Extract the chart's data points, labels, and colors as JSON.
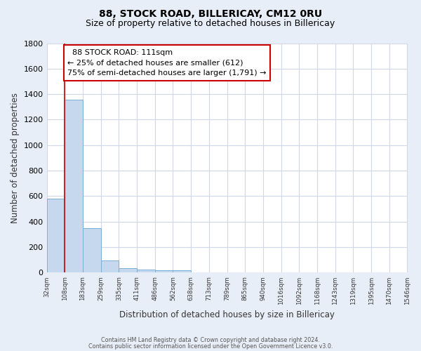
{
  "title": "88, STOCK ROAD, BILLERICAY, CM12 0RU",
  "subtitle": "Size of property relative to detached houses in Billericay",
  "xlabel": "Distribution of detached houses by size in Billericay",
  "ylabel": "Number of detached properties",
  "footer_line1": "Contains HM Land Registry data © Crown copyright and database right 2024.",
  "footer_line2": "Contains public sector information licensed under the Open Government Licence v3.0.",
  "annotation_title": "88 STOCK ROAD: 111sqm",
  "annotation_line2": "← 25% of detached houses are smaller (612)",
  "annotation_line3": "75% of semi-detached houses are larger (1,791) →",
  "bar_edges": [
    32,
    108,
    183,
    259,
    335,
    411,
    486,
    562,
    638,
    713,
    789,
    865,
    940,
    1016,
    1092,
    1168,
    1243,
    1319,
    1395,
    1470,
    1546
  ],
  "bar_heights": [
    580,
    1358,
    350,
    98,
    35,
    25,
    20,
    18,
    0,
    0,
    0,
    0,
    0,
    0,
    0,
    0,
    0,
    0,
    0,
    0
  ],
  "bar_color": "#c5d8ee",
  "bar_edge_color": "#7aafd4",
  "vline_color": "#cc0000",
  "vline_x": 108,
  "annotation_box_edge_color": "#cc0000",
  "ylim": [
    0,
    1800
  ],
  "xlim": [
    32,
    1546
  ],
  "yticks": [
    0,
    200,
    400,
    600,
    800,
    1000,
    1200,
    1400,
    1600,
    1800
  ],
  "bg_color": "#e8eef8",
  "plot_bg_color": "#ffffff",
  "grid_color": "#d0d8e8",
  "title_fontsize": 10,
  "subtitle_fontsize": 9
}
